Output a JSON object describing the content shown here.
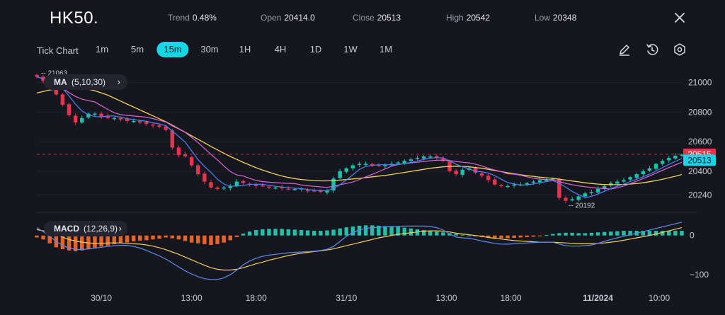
{
  "header": {
    "symbol": "HK50.",
    "stats": [
      {
        "label": "Trend",
        "value": "0.48%"
      },
      {
        "label": "Open",
        "value": "20414.0"
      },
      {
        "label": "Close",
        "value": "20513"
      },
      {
        "label": "High",
        "value": "20542"
      },
      {
        "label": "Low",
        "value": "20348"
      }
    ]
  },
  "toolbar": {
    "chart_type_label": "Tick Chart",
    "timeframes": [
      "1m",
      "5m",
      "15m",
      "30m",
      "1H",
      "4H",
      "1D",
      "1W",
      "1M"
    ],
    "active_timeframe": "15m",
    "tools": [
      "draw-icon",
      "replay-icon",
      "settings-icon"
    ]
  },
  "indicators": {
    "ma": {
      "name": "MA",
      "params": "(5,10,30)"
    },
    "macd": {
      "name": "MACD",
      "params": "(12,26,9)"
    }
  },
  "colors": {
    "up": "#19c3a9",
    "down": "#e8334f",
    "accent": "#18d6e8",
    "ma5": "#4a83ff",
    "ma10": "#d966d9",
    "ma30": "#f2d15a",
    "hist_pos": "#1fbfa8",
    "hist_neg": "#e8622a",
    "macd_line": "#5b8cf0",
    "signal_line": "#f2d15a"
  },
  "chart_data": {
    "type": "line",
    "price_axis": {
      "ticks": [
        21000,
        20800,
        20600,
        20400,
        20240
      ],
      "range": [
        20160,
        21080
      ]
    },
    "macd_axis": {
      "ticks": [
        0,
        -100
      ],
      "range": [
        -125,
        50
      ]
    },
    "x_ticks": [
      "30/10",
      "13:00",
      "18:00",
      "31/10",
      "13:00",
      "18:00",
      "11/2024",
      "10:00"
    ],
    "price_markers": {
      "high_label": "21063",
      "low_label": "20192",
      "last_red": "20515",
      "last_cyan": "20513"
    },
    "close_series": [
      21040,
      21010,
      20990,
      20920,
      20850,
      20780,
      20730,
      20760,
      20790,
      20790,
      20770,
      20760,
      20760,
      20750,
      20740,
      20740,
      20730,
      20720,
      20710,
      20700,
      20680,
      20560,
      20510,
      20500,
      20440,
      20380,
      20330,
      20290,
      20280,
      20290,
      20300,
      20330,
      20320,
      20310,
      20300,
      20300,
      20290,
      20290,
      20285,
      20280,
      20280,
      20275,
      20270,
      20265,
      20260,
      20270,
      20350,
      20400,
      20420,
      20440,
      20450,
      20450,
      20440,
      20440,
      20440,
      20450,
      20460,
      20470,
      20480,
      20490,
      20500,
      20500,
      20490,
      20470,
      20400,
      20380,
      20410,
      20420,
      20390,
      20370,
      20340,
      20310,
      20300,
      20300,
      20310,
      20310,
      20320,
      20330,
      20340,
      20340,
      20350,
      20220,
      20200,
      20210,
      20230,
      20250,
      20260,
      20280,
      20300,
      20320,
      20330,
      20340,
      20360,
      20380,
      20400,
      20420,
      20450,
      20470,
      20490,
      20505,
      20513
    ],
    "ma_series": {
      "ma5": [
        21040,
        21025,
        21013,
        20990,
        20962,
        20910,
        20854,
        20808,
        20782,
        20770,
        20768,
        20774,
        20774,
        20766,
        20756,
        20750,
        20744,
        20738,
        20728,
        20720,
        20708,
        20672,
        20636,
        20598,
        20538,
        20478,
        20432,
        20392,
        20346,
        20314,
        20298,
        20300,
        20304,
        20310,
        20312,
        20312,
        20304,
        20298,
        20293,
        20289,
        20285,
        20282,
        20277,
        20272,
        20270,
        20268,
        20283,
        20309,
        20340,
        20376,
        20412,
        20432,
        20440,
        20444,
        20444,
        20444,
        20446,
        20452,
        20460,
        20470,
        20480,
        20488,
        20492,
        20490,
        20472,
        20448,
        20430,
        20416,
        20400,
        20396,
        20388,
        20370,
        20346,
        20324,
        20314,
        20306,
        20308,
        20314,
        20322,
        20330,
        20337,
        20318,
        20292,
        20264,
        20242,
        20222,
        20230,
        20246,
        20264,
        20282,
        20298,
        20314,
        20330,
        20346,
        20362,
        20380,
        20402,
        20424,
        20446,
        20467,
        20486
      ],
      "ma10": [
        21040,
        21025,
        21013,
        20990,
        20962,
        20932,
        20906,
        20889,
        20878,
        20869,
        20844,
        20819,
        20796,
        20783,
        20778,
        20774,
        20770,
        20766,
        20756,
        20745,
        20733,
        20707,
        20686,
        20663,
        20630,
        20594,
        20554,
        20514,
        20477,
        20436,
        20398,
        20375,
        20368,
        20351,
        20338,
        20330,
        20326,
        20323,
        20320,
        20318,
        20316,
        20307,
        20302,
        20298,
        20294,
        20291,
        20298,
        20309,
        20317,
        20327,
        20344,
        20362,
        20379,
        20397,
        20416,
        20434,
        20445,
        20452,
        20456,
        20461,
        20466,
        20471,
        20475,
        20476,
        20472,
        20466,
        20461,
        20457,
        20448,
        20436,
        20420,
        20408,
        20397,
        20383,
        20380,
        20373,
        20362,
        20352,
        20347,
        20344,
        20342,
        20330,
        20318,
        20309,
        20301,
        20295,
        20290,
        20285,
        20282,
        20280,
        20288,
        20300,
        20316,
        20333,
        20350,
        20368,
        20387,
        20406,
        20425,
        20443,
        20461
      ],
      "ma30": [
        20930,
        20940,
        20950,
        20955,
        20960,
        20965,
        20965,
        20962,
        20955,
        20945,
        20930,
        20915,
        20895,
        20875,
        20855,
        20835,
        20815,
        20795,
        20775,
        20755,
        20735,
        20712,
        20688,
        20664,
        20640,
        20616,
        20592,
        20568,
        20545,
        20522,
        20500,
        20480,
        20460,
        20442,
        20424,
        20408,
        20394,
        20380,
        20368,
        20358,
        20350,
        20344,
        20340,
        20337,
        20335,
        20335,
        20337,
        20340,
        20344,
        20348,
        20352,
        20357,
        20362,
        20367,
        20372,
        20378,
        20385,
        20392,
        20399,
        20406,
        20413,
        20420,
        20425,
        20430,
        20433,
        20434,
        20433,
        20430,
        20425,
        20420,
        20413,
        20405,
        20397,
        20390,
        20383,
        20376,
        20370,
        20365,
        20360,
        20356,
        20352,
        20346,
        20340,
        20334,
        20328,
        20322,
        20317,
        20313,
        20310,
        20309,
        20309,
        20311,
        20313,
        20317,
        20322,
        20329,
        20337,
        20346,
        20356,
        20366,
        20378
      ]
    },
    "macd_histogram": [
      -5,
      -10,
      -20,
      -30,
      -35,
      -38,
      -40,
      -38,
      -35,
      -32,
      -28,
      -26,
      -22,
      -20,
      -18,
      -15,
      -13,
      -12,
      -10,
      -8,
      -5,
      -7,
      -10,
      -14,
      -18,
      -20,
      -22,
      -24,
      -22,
      -18,
      -12,
      -4,
      5,
      10,
      14,
      16,
      17,
      17,
      17,
      16,
      15,
      14,
      13,
      12,
      12,
      13,
      15,
      18,
      21,
      23,
      25,
      26,
      26,
      25,
      24,
      23,
      22,
      20,
      18,
      16,
      14,
      12,
      10,
      8,
      6,
      4,
      2,
      0,
      -2,
      -4,
      -5,
      -6,
      -7,
      -7,
      -6,
      -5,
      -4,
      -3,
      -2,
      1,
      4,
      6,
      7,
      7,
      6,
      6,
      7,
      8,
      9,
      10,
      11,
      12,
      12,
      12,
      12,
      12,
      12,
      12,
      12,
      12,
      12
    ],
    "macd_line": [
      20,
      10,
      -2,
      -15,
      -25,
      -32,
      -35,
      -36,
      -34,
      -32,
      -30,
      -28,
      -26,
      -25,
      -25,
      -28,
      -32,
      -38,
      -45,
      -52,
      -60,
      -70,
      -80,
      -90,
      -98,
      -105,
      -110,
      -112,
      -112,
      -108,
      -100,
      -88,
      -75,
      -65,
      -58,
      -53,
      -50,
      -48,
      -46,
      -44,
      -43,
      -42,
      -41,
      -40,
      -38,
      -35,
      -28,
      -15,
      -2,
      8,
      14,
      18,
      20,
      21,
      22,
      23,
      23,
      24,
      24,
      24,
      24,
      23,
      20,
      14,
      4,
      -4,
      -6,
      -7,
      -10,
      -14,
      -17,
      -20,
      -22,
      -22,
      -21,
      -20,
      -19,
      -18,
      -17,
      -17,
      -17,
      -22,
      -26,
      -27,
      -27,
      -26,
      -24,
      -20,
      -15,
      -10,
      -6,
      -2,
      2,
      6,
      10,
      14,
      18,
      22,
      26,
      30,
      34
    ],
    "signal_line": [
      15,
      12,
      8,
      2,
      -4,
      -10,
      -14,
      -17,
      -19,
      -20,
      -20,
      -19,
      -19,
      -19,
      -20,
      -21,
      -22,
      -24,
      -27,
      -31,
      -36,
      -42,
      -48,
      -55,
      -62,
      -69,
      -76,
      -82,
      -86,
      -88,
      -88,
      -86,
      -82,
      -77,
      -72,
      -68,
      -63,
      -59,
      -55,
      -51,
      -48,
      -45,
      -43,
      -41,
      -39,
      -37,
      -34,
      -30,
      -26,
      -22,
      -18,
      -14,
      -10,
      -6,
      -3,
      0,
      3,
      5,
      7,
      9,
      11,
      12,
      12,
      11,
      9,
      6,
      4,
      2,
      0,
      -2,
      -5,
      -7,
      -9,
      -11,
      -13,
      -14,
      -15,
      -16,
      -17,
      -17,
      -17,
      -18,
      -19,
      -20,
      -21,
      -21,
      -21,
      -20,
      -19,
      -17,
      -15,
      -12,
      -9,
      -6,
      -3,
      0,
      4,
      8,
      12,
      16,
      20
    ]
  }
}
